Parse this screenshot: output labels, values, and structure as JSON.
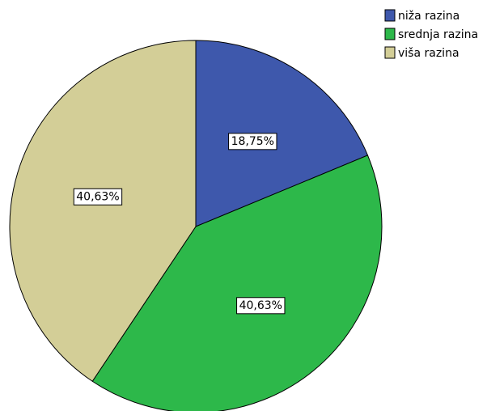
{
  "chart_data": {
    "type": "pie",
    "categories": [
      "niža razina",
      "srednja razina",
      "viša razina"
    ],
    "values": [
      18.75,
      40.63,
      40.63
    ],
    "value_labels": [
      "18,75%",
      "40,63%",
      "40,63%"
    ],
    "colors": [
      "#3e58ac",
      "#2db84a",
      "#d3ce97"
    ],
    "legend": "upper right"
  }
}
